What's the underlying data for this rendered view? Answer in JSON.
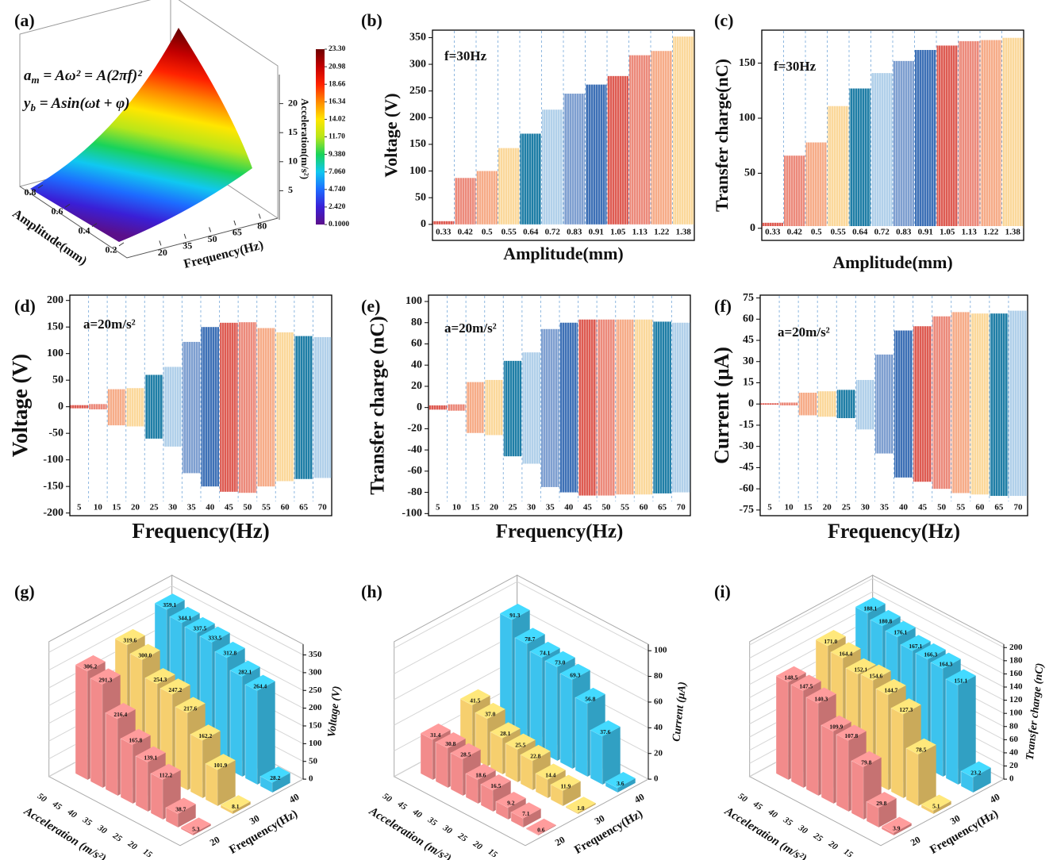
{
  "chart_data": [
    {
      "panel_label": "(a)",
      "type": "surface",
      "formulas": [
        {
          "base": "a",
          "sub": "m",
          "rest": " = Aω² = A(2πf)²"
        },
        {
          "base": "y",
          "sub": "b",
          "rest": " = Asin(ωt + φ)"
        }
      ],
      "x_label": "Frequency(Hz)",
      "xlim": [
        10,
        88
      ],
      "xticks": [
        20,
        35,
        50,
        65,
        80
      ],
      "y_label": "Amplitude(mm)",
      "ylim": [
        0.1,
        0.9
      ],
      "yticks": [
        0.2,
        0.4,
        0.6,
        0.8
      ],
      "z_label": "Acceleration(m/s²)",
      "zlim": [
        0,
        25
      ],
      "zticks": [
        5,
        10,
        15,
        20
      ],
      "clim": [
        0.1,
        23.3
      ],
      "cticks": [
        {
          "value": 0.1,
          "label": "0.1000"
        },
        {
          "value": 2.42,
          "label": "2.420"
        },
        {
          "value": 4.74,
          "label": "4.740"
        },
        {
          "value": 7.06,
          "label": "7.060"
        },
        {
          "value": 9.38,
          "label": "9.380"
        },
        {
          "value": 11.7,
          "label": "11.70"
        },
        14.02,
        16.34,
        18.66,
        20.98,
        {
          "value": 23.3,
          "label": "23.30"
        }
      ],
      "colormap": [
        "#5b0f8a",
        "#3a1fd6",
        "#1d6bff",
        "#10c8f0",
        "#19d35a",
        "#b8e61a",
        "#ffe600",
        "#ff8a00",
        "#ff2200",
        "#c40000",
        "#6e0000"
      ]
    },
    {
      "panel_label": "(b)",
      "type": "range",
      "y_label": "Voltage (V)",
      "x_label": "Amplitude(mm)",
      "annotation": "f=30Hz",
      "categories": [
        "0.33",
        "0.42",
        "0.5",
        "0.55",
        "0.64",
        "0.72",
        "0.83",
        "0.91",
        "1.05",
        "1.13",
        "1.22",
        "1.38"
      ],
      "high": [
        6,
        87,
        100,
        143,
        170,
        215,
        245,
        262,
        278,
        317,
        325,
        352
      ],
      "low": [
        0,
        0,
        0,
        0,
        0,
        0,
        0,
        0,
        0,
        0,
        0,
        0
      ],
      "colors": [
        "#de5b52",
        "#ec8a7b",
        "#f6ac88",
        "#fbd89b",
        "#1f7ea6",
        "#b1d0ea",
        "#7e9fd0",
        "#3d70b6",
        "#de5b52",
        "#ec8a7b",
        "#f6ac88",
        "#fbd89b"
      ],
      "ylim": [
        -30,
        364
      ],
      "yticks": [
        0,
        50,
        100,
        150,
        200,
        250,
        300,
        350
      ]
    },
    {
      "panel_label": "(c)",
      "type": "range",
      "y_label": "Transfer charge(nC)",
      "x_label": "Amplitude(mm)",
      "annotation": "f=30Hz",
      "categories": [
        "0.33",
        "0.42",
        "0.5",
        "0.55",
        "0.64",
        "0.72",
        "0.83",
        "0.91",
        "1.05",
        "1.13",
        "1.22",
        "1.38"
      ],
      "high": [
        5,
        66,
        78,
        111,
        127,
        141,
        152,
        162,
        166,
        170,
        171,
        173
      ],
      "low": [
        0,
        0,
        0,
        0,
        0,
        0,
        0,
        0,
        0,
        0,
        0,
        0
      ],
      "colors": [
        "#de5b52",
        "#ec8a7b",
        "#f6ac88",
        "#fbd89b",
        "#1f7ea6",
        "#b1d0ea",
        "#7e9fd0",
        "#3d70b6",
        "#de5b52",
        "#ec8a7b",
        "#f6ac88",
        "#fbd89b"
      ],
      "ylim": [
        -11,
        180
      ],
      "yticks": [
        0,
        50,
        100,
        150
      ]
    },
    {
      "panel_label": "(d)",
      "type": "range",
      "y_label": "Voltage (V)",
      "x_label": "Frequency(Hz)",
      "annotation": "a=20m/s²",
      "categories": [
        "5",
        "10",
        "15",
        "20",
        "25",
        "30",
        "35",
        "40",
        "45",
        "50",
        "55",
        "60",
        "65",
        "70"
      ],
      "high": [
        3,
        5,
        33,
        35,
        60,
        75,
        122,
        150,
        158,
        159,
        148,
        140,
        133,
        131
      ],
      "low": [
        -3,
        -5,
        -35,
        -37,
        -60,
        -75,
        -125,
        -150,
        -160,
        -162,
        -150,
        -140,
        -136,
        -134
      ],
      "colors": [
        "#de5b52",
        "#ec8a7b",
        "#f6ac88",
        "#fbd89b",
        "#1f7ea6",
        "#b1d0ea",
        "#7e9fd0",
        "#3d70b6",
        "#de5b52",
        "#ec8a7b",
        "#f6ac88",
        "#fbd89b",
        "#1f7ea6",
        "#b1d0ea"
      ],
      "ylim": [
        -205,
        210
      ],
      "yticks": [
        -200,
        -150,
        -100,
        -50,
        0,
        50,
        100,
        150,
        200
      ]
    },
    {
      "panel_label": "(e)",
      "type": "range",
      "y_label": "Transfer charge (nC)",
      "x_label": "Frequency(Hz)",
      "annotation": "a=20m/s²",
      "categories": [
        "5",
        "10",
        "15",
        "20",
        "25",
        "30",
        "35",
        "40",
        "45",
        "50",
        "55",
        "60",
        "65",
        "70"
      ],
      "high": [
        2,
        3,
        24,
        26,
        44,
        52,
        74,
        80,
        83,
        83,
        83,
        83,
        81,
        80
      ],
      "low": [
        -2,
        -3,
        -24,
        -26,
        -46,
        -53,
        -75,
        -80,
        -83,
        -83,
        -82,
        -82,
        -81,
        -80
      ],
      "colors": [
        "#de5b52",
        "#ec8a7b",
        "#f6ac88",
        "#fbd89b",
        "#1f7ea6",
        "#b1d0ea",
        "#7e9fd0",
        "#3d70b6",
        "#de5b52",
        "#ec8a7b",
        "#f6ac88",
        "#fbd89b",
        "#1f7ea6",
        "#b1d0ea"
      ],
      "ylim": [
        -102,
        106
      ],
      "yticks": [
        -100,
        -80,
        -60,
        -40,
        -20,
        0,
        20,
        40,
        60,
        80,
        100
      ]
    },
    {
      "panel_label": "(f)",
      "type": "range",
      "y_label": "Current (μA)",
      "x_label": "Frequency(Hz)",
      "annotation": "a=20m/s²",
      "categories": [
        "5",
        "10",
        "15",
        "20",
        "25",
        "30",
        "35",
        "40",
        "45",
        "50",
        "55",
        "60",
        "65",
        "70"
      ],
      "high": [
        0.5,
        1,
        8,
        9,
        10,
        17,
        35,
        52,
        55,
        62,
        65,
        64,
        64,
        66
      ],
      "low": [
        -0.5,
        -1,
        -8,
        -9,
        -10,
        -18,
        -35,
        -52,
        -55,
        -60,
        -63,
        -64,
        -65,
        -65
      ],
      "colors": [
        "#de5b52",
        "#ec8a7b",
        "#f6ac88",
        "#fbd89b",
        "#1f7ea6",
        "#b1d0ea",
        "#7e9fd0",
        "#3d70b6",
        "#de5b52",
        "#ec8a7b",
        "#f6ac88",
        "#fbd89b",
        "#1f7ea6",
        "#b1d0ea"
      ],
      "ylim": [
        -79,
        77
      ],
      "yticks": [
        -75,
        -60,
        -45,
        -30,
        -15,
        0,
        15,
        30,
        45,
        60,
        75
      ]
    },
    {
      "panel_label": "(g)",
      "type": "bar3d",
      "z_label": "Voltage (V)",
      "x_label": "Acceleration (m/s²)",
      "y_label": "Frequency(Hz)",
      "categories": [
        "50",
        "45",
        "40",
        "35",
        "30",
        "25",
        "20",
        "15"
      ],
      "series": [
        {
          "name": "20",
          "color": "#f28b8b",
          "values": [
            306.2,
            291.3,
            216.4,
            165.8,
            139.1,
            112.2,
            38.7,
            5.3
          ]
        },
        {
          "name": "30",
          "color": "#f6cf6e",
          "values": [
            319.6,
            300,
            254.3,
            247.2,
            217.6,
            162.2,
            101.9,
            8.1
          ],
          "value_labels": [
            "319.6",
            "300.0",
            "254.3",
            "247.2",
            "217.6",
            "162.2",
            "101.9",
            "8.1"
          ]
        },
        {
          "name": "40",
          "color": "#3cc3ee",
          "values": [
            359.1,
            344.1,
            337.5,
            333.5,
            312.8,
            282.1,
            264.4,
            28.2
          ]
        }
      ],
      "zlim": [
        0,
        380
      ],
      "zticks": [
        0,
        50,
        100,
        150,
        200,
        250,
        300,
        350
      ]
    },
    {
      "panel_label": "(h)",
      "type": "bar3d",
      "z_label": "Current (μA)",
      "x_label": "Acceleration (m/s²)",
      "y_label": "Frequency(Hz)",
      "categories": [
        "50",
        "45",
        "40",
        "35",
        "30",
        "25",
        "20",
        "15"
      ],
      "series": [
        {
          "name": "20",
          "color": "#f28b8b",
          "values": [
            31.4,
            30.8,
            28.5,
            18.6,
            16.5,
            9.2,
            7.1,
            0.6
          ]
        },
        {
          "name": "30",
          "color": "#f6cf6e",
          "values": [
            41.5,
            37,
            28.1,
            25.5,
            22.8,
            14.4,
            11.9,
            1
          ],
          "value_labels": [
            "41.5",
            "37.0",
            "28.1",
            "25.5",
            "22.8",
            "14.4",
            "11.9",
            "1.0"
          ]
        },
        {
          "name": "40",
          "color": "#3cc3ee",
          "values": [
            91.3,
            78.7,
            74.1,
            73,
            69.3,
            56.8,
            37.6,
            3.6
          ],
          "value_labels": [
            "91.3",
            "78.7",
            "74.1",
            "73.0",
            "69.3",
            "56.8",
            "37.6",
            "3.6"
          ]
        }
      ],
      "zlim": [
        0,
        105
      ],
      "zticks": [
        0,
        20,
        40,
        60,
        80,
        100
      ]
    },
    {
      "panel_label": "(i)",
      "type": "bar3d",
      "z_label": "Transfer charge (nC)",
      "x_label": "Acceleration (m/s²)",
      "y_label": "Frequency(Hz)",
      "categories": [
        "50",
        "45",
        "40",
        "35",
        "30",
        "25",
        "20",
        "15"
      ],
      "series": [
        {
          "name": "20",
          "color": "#f28b8b",
          "values": [
            148.5,
            147.5,
            140.3,
            109.9,
            107.8,
            79.8,
            29.8,
            3.9
          ]
        },
        {
          "name": "30",
          "color": "#f6cf6e",
          "values": [
            171,
            164.4,
            152.1,
            154.6,
            144.7,
            127.3,
            78.5,
            5.1
          ],
          "value_labels": [
            "171.0",
            "164.4",
            "152.1",
            "154.6",
            "144.7",
            "127.3",
            "78.5",
            "5.1"
          ]
        },
        {
          "name": "40",
          "color": "#3cc3ee",
          "values": [
            188.1,
            180.8,
            176.1,
            167.1,
            166.3,
            164.3,
            151.1,
            23.2
          ]
        }
      ],
      "zlim": [
        0,
        205
      ],
      "zticks": [
        0,
        20,
        40,
        60,
        80,
        100,
        120,
        140,
        160,
        180,
        200
      ]
    }
  ]
}
